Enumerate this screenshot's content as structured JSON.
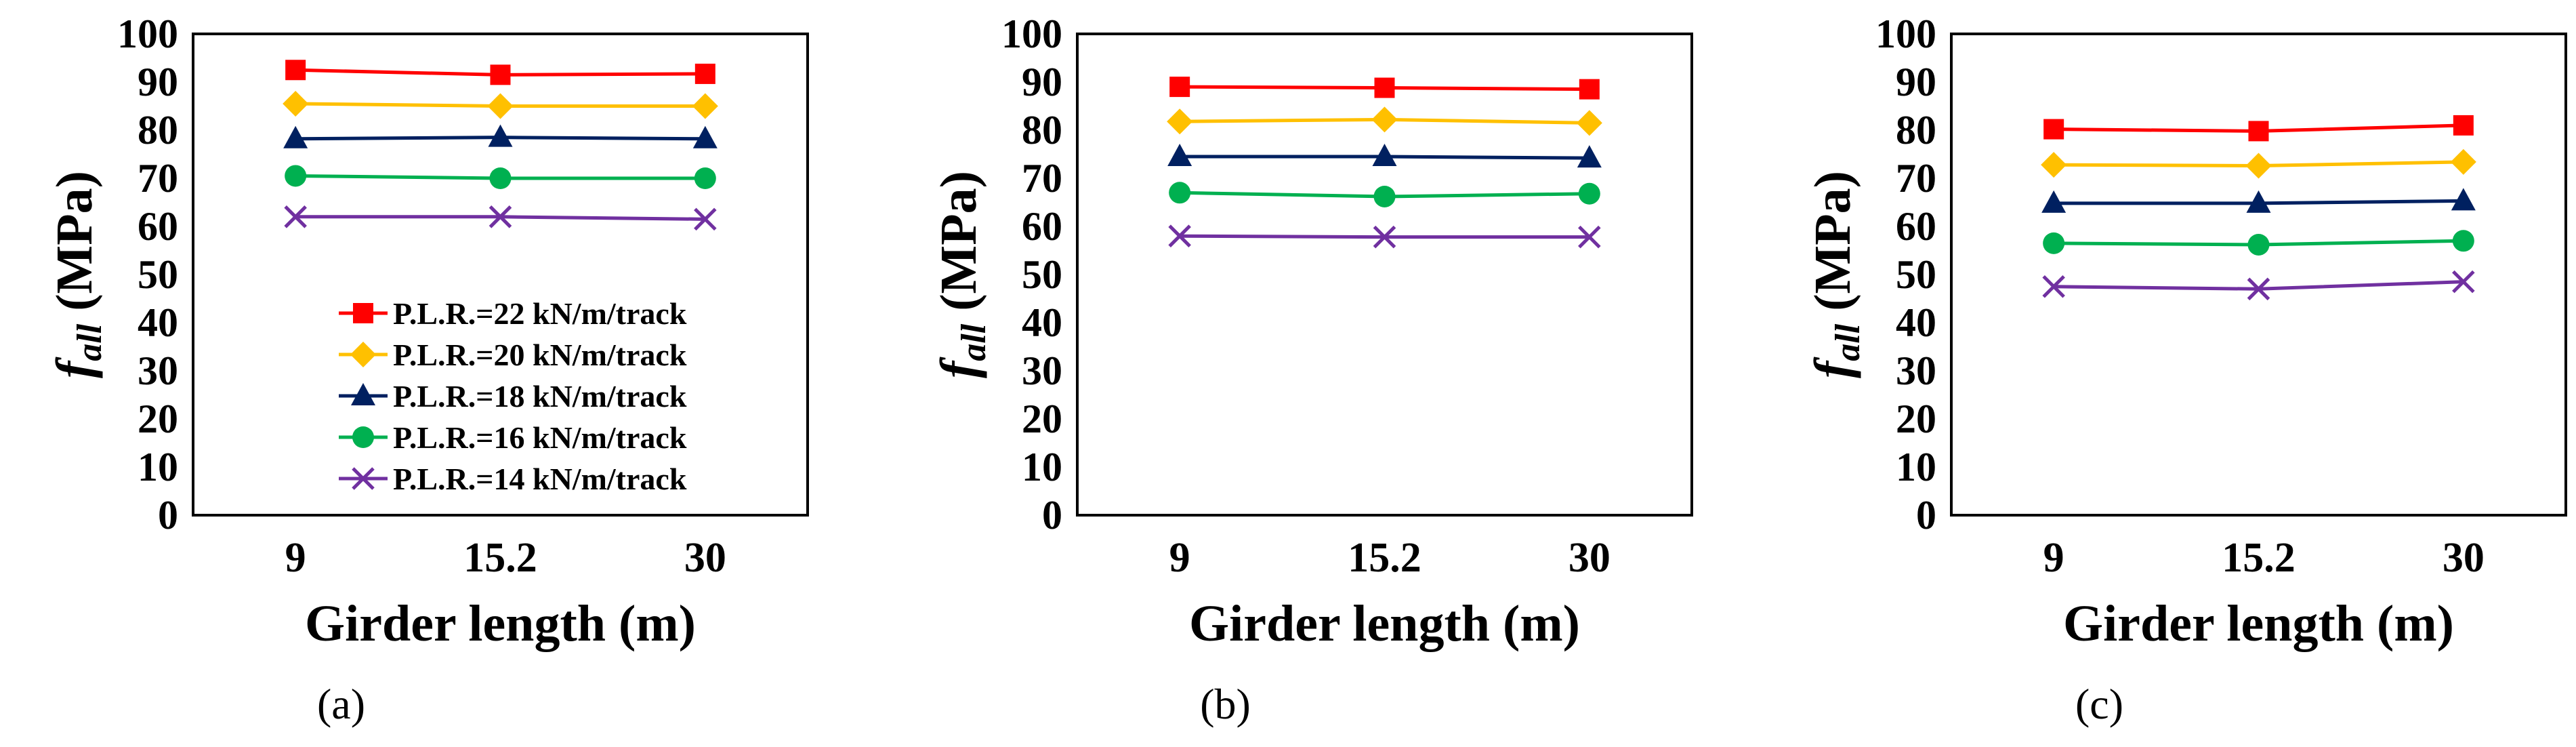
{
  "chart_data": [
    {
      "type": "line",
      "panel_label": "(a)",
      "ylabel": {
        "symbol": "f",
        "subscript": "all",
        "unit": "(MPa)"
      },
      "xlabel": "Girder length (m)",
      "categories": [
        "9",
        "15.2",
        "30"
      ],
      "ylim": [
        0,
        100
      ],
      "yticks": [
        0,
        10,
        20,
        30,
        40,
        50,
        60,
        70,
        80,
        90,
        100
      ],
      "legend_position": "bottom-right",
      "series": [
        {
          "name": "P.L.R.=22 kN/m/track",
          "values": [
            92.5,
            91.5,
            91.7
          ],
          "color": "#ff0000",
          "marker": "square"
        },
        {
          "name": "P.L.R.=20 kN/m/track",
          "values": [
            85.5,
            85.0,
            85.0
          ],
          "color": "#ffc000",
          "marker": "diamond"
        },
        {
          "name": "P.L.R.=18 kN/m/track",
          "values": [
            78.2,
            78.5,
            78.2
          ],
          "color": "#002060",
          "marker": "triangle"
        },
        {
          "name": "P.L.R.=16 kN/m/track",
          "values": [
            70.5,
            70.0,
            70.0
          ],
          "color": "#00b050",
          "marker": "circle"
        },
        {
          "name": "P.L.R.=14 kN/m/track",
          "values": [
            62.0,
            62.0,
            61.5
          ],
          "color": "#7030a0",
          "marker": "x"
        }
      ]
    },
    {
      "type": "line",
      "panel_label": "(b)",
      "ylabel": {
        "symbol": "f",
        "subscript": "all",
        "unit": "(MPa)"
      },
      "xlabel": "Girder length (m)",
      "categories": [
        "9",
        "15.2",
        "30"
      ],
      "ylim": [
        0,
        100
      ],
      "yticks": [
        0,
        10,
        20,
        30,
        40,
        50,
        60,
        70,
        80,
        90,
        100
      ],
      "series": [
        {
          "name": "P.L.R.=22 kN/m/track",
          "values": [
            89.0,
            88.8,
            88.5
          ],
          "color": "#ff0000",
          "marker": "square"
        },
        {
          "name": "P.L.R.=20 kN/m/track",
          "values": [
            81.8,
            82.2,
            81.5
          ],
          "color": "#ffc000",
          "marker": "diamond"
        },
        {
          "name": "P.L.R.=18 kN/m/track",
          "values": [
            74.5,
            74.5,
            74.2
          ],
          "color": "#002060",
          "marker": "triangle"
        },
        {
          "name": "P.L.R.=16 kN/m/track",
          "values": [
            67.0,
            66.2,
            66.8
          ],
          "color": "#00b050",
          "marker": "circle"
        },
        {
          "name": "P.L.R.=14 kN/m/track",
          "values": [
            58.0,
            57.8,
            57.8
          ],
          "color": "#7030a0",
          "marker": "x"
        }
      ]
    },
    {
      "type": "line",
      "panel_label": "(c)",
      "ylabel": {
        "symbol": "f",
        "subscript": "all",
        "unit": "(MPa)"
      },
      "xlabel": "Girder length (m)",
      "categories": [
        "9",
        "15.2",
        "30"
      ],
      "ylim": [
        0,
        100
      ],
      "yticks": [
        0,
        10,
        20,
        30,
        40,
        50,
        60,
        70,
        80,
        90,
        100
      ],
      "series": [
        {
          "name": "P.L.R.=22 kN/m/track",
          "values": [
            80.2,
            79.8,
            81.0
          ],
          "color": "#ff0000",
          "marker": "square"
        },
        {
          "name": "P.L.R.=20 kN/m/track",
          "values": [
            72.8,
            72.6,
            73.4
          ],
          "color": "#ffc000",
          "marker": "diamond"
        },
        {
          "name": "P.L.R.=18 kN/m/track",
          "values": [
            64.8,
            64.8,
            65.3
          ],
          "color": "#002060",
          "marker": "triangle"
        },
        {
          "name": "P.L.R.=16 kN/m/track",
          "values": [
            56.5,
            56.2,
            57.0
          ],
          "color": "#00b050",
          "marker": "circle"
        },
        {
          "name": "P.L.R.=14 kN/m/track",
          "values": [
            47.5,
            47.0,
            48.5
          ],
          "color": "#7030a0",
          "marker": "x"
        }
      ]
    }
  ]
}
